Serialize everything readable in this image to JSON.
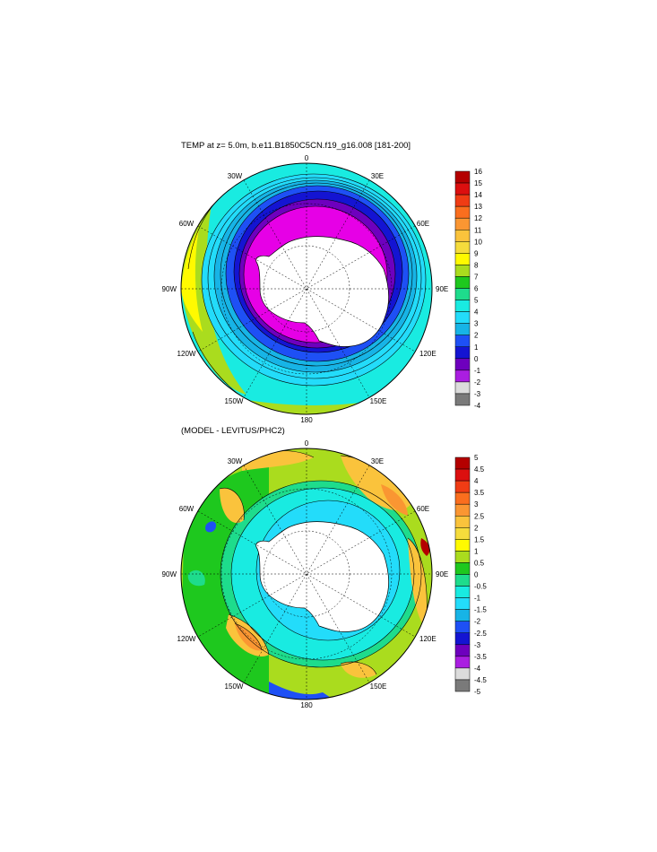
{
  "panels": [
    {
      "title": "TEMP at z=   5.0m, b.e11.B1850C5CN.f19_g16.008 [181-200]",
      "field": "temperature",
      "lon_labels": [
        "0",
        "30E",
        "60E",
        "90E",
        "120E",
        "150E",
        "180",
        "150W",
        "120W",
        "90W",
        "60W",
        "30W"
      ],
      "colorbar_labels": [
        "16",
        "15",
        "14",
        "13",
        "12",
        "11",
        "10",
        "9",
        "8",
        "7",
        "6",
        "5",
        "4",
        "3",
        "2",
        "1",
        "0",
        "-1",
        "-2",
        "-3",
        "-4"
      ],
      "colorbar_colors": [
        "#b40000",
        "#dc0f0f",
        "#f03c14",
        "#fa6e1e",
        "#fa9632",
        "#fac33c",
        "#f5dc3c",
        "#fffa00",
        "#aadc1e",
        "#1ec81e",
        "#1edc8c",
        "#19ebe1",
        "#23dcfa",
        "#17b4e6",
        "#1e50f5",
        "#1414d2",
        "#6e00be",
        "#aa1ee1",
        "#dcdcdc",
        "#7a7a7a"
      ]
    },
    {
      "title": "(MODEL - LEVITUS/PHC2)",
      "field": "anomaly",
      "lon_labels": [
        "0",
        "30E",
        "60E",
        "90E",
        "120E",
        "150E",
        "180",
        "150W",
        "120W",
        "90W",
        "60W",
        "30W"
      ],
      "colorbar_labels": [
        "5",
        "4.5",
        "4",
        "3.5",
        "3",
        "2.5",
        "2",
        "1.5",
        "1",
        "0.5",
        "0",
        "-0.5",
        "-1",
        "-1.5",
        "-2",
        "-2.5",
        "-3",
        "-3.5",
        "-4",
        "-4.5",
        "-5"
      ],
      "colorbar_colors": [
        "#b40000",
        "#dc0f0f",
        "#f03c14",
        "#fa6e1e",
        "#fa9632",
        "#fac33c",
        "#f5dc3c",
        "#fffa00",
        "#aadc1e",
        "#1ec81e",
        "#1edc8c",
        "#19ebe1",
        "#23dcfa",
        "#17b4e6",
        "#1e50f5",
        "#1414d2",
        "#6e00be",
        "#aa1ee1",
        "#dcdcdc",
        "#7a7a7a"
      ]
    }
  ]
}
